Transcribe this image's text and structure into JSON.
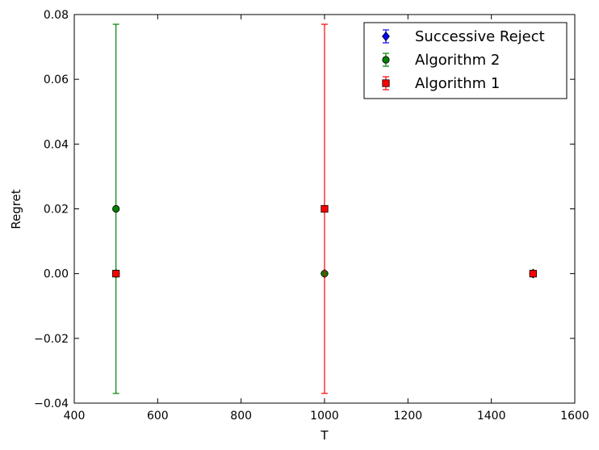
{
  "chart_data": {
    "type": "scatter",
    "xlabel": "T",
    "ylabel": "Regret",
    "xlim": [
      400,
      1600
    ],
    "ylim": [
      -0.04,
      0.08
    ],
    "x_ticks": [
      400,
      600,
      800,
      1000,
      1200,
      1400,
      1600
    ],
    "x_tick_labels": [
      "400",
      "600",
      "800",
      "1000",
      "1200",
      "1400",
      "1600"
    ],
    "y_ticks": [
      -0.04,
      -0.02,
      0.0,
      0.02,
      0.04,
      0.06,
      0.08
    ],
    "y_tick_labels": [
      "−0.04",
      "−0.02",
      "0.00",
      "0.02",
      "0.04",
      "0.06",
      "0.08"
    ],
    "grid": false,
    "legend_position": "top-right",
    "series": [
      {
        "name": "Successive Reject",
        "color": "#0000ff",
        "marker": "diamond",
        "points": [
          {
            "x": 500,
            "y": 0.0,
            "err": 0.0
          },
          {
            "x": 1000,
            "y": 0.0,
            "err": 0.0
          },
          {
            "x": 1500,
            "y": 0.0,
            "err": 0.0
          }
        ]
      },
      {
        "name": "Algorithm 2",
        "color": "#008000",
        "marker": "circle",
        "points": [
          {
            "x": 500,
            "y": 0.02,
            "err": 0.057
          },
          {
            "x": 1000,
            "y": 0.0,
            "err": 0.0
          },
          {
            "x": 1500,
            "y": 0.0,
            "err": 0.0
          }
        ]
      },
      {
        "name": "Algorithm 1",
        "color": "#ff0000",
        "marker": "square",
        "points": [
          {
            "x": 500,
            "y": 0.0,
            "err": 0.0
          },
          {
            "x": 1000,
            "y": 0.02,
            "err": 0.057
          },
          {
            "x": 1500,
            "y": 0.0,
            "err": 0.0
          }
        ]
      }
    ]
  }
}
